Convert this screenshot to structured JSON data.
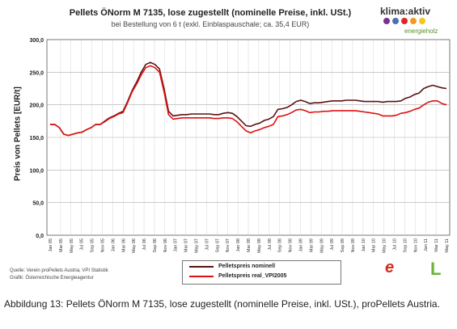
{
  "chart_data": {
    "type": "line",
    "title": "Pellets ÖNorm M 7135, lose zugestellt (nominelle Preise, inkl. USt.)",
    "subtitle": "bei Bestellung von 6 t (exkl. Einblaspauschale; ca. 35,4 EUR)",
    "ylabel": "Preis von Pellets [EUR/t]",
    "xlabel": "",
    "ylim": [
      0,
      300
    ],
    "yticks": [
      "0,0",
      "50,0",
      "100,0",
      "150,0",
      "200,0",
      "250,0",
      "300,0"
    ],
    "x_tick_labels": [
      "Jan 05",
      "Mar 05",
      "May 05",
      "Jul 05",
      "Sep 05",
      "Nov 05",
      "Jan 06",
      "Mar 06",
      "May 06",
      "Jul 06",
      "Sep 06",
      "Nov 06",
      "Jan 07",
      "Mar 07",
      "May 07",
      "Jul 07",
      "Sep 07",
      "Nov 07",
      "Jan 08",
      "Mar 08",
      "May 08",
      "Jul 08",
      "Sep 08",
      "Nov 08",
      "Jan 09",
      "Mar 09",
      "May 09",
      "Jul 09",
      "Sep 09",
      "Nov 09",
      "Jan 10",
      "Mar 10",
      "May 10",
      "Jul 10",
      "Sep 10",
      "Nov 10",
      "Jan 11",
      "Mar 11",
      "May 11"
    ],
    "grid": true,
    "legend_position": "bottom-center",
    "series": [
      {
        "name": "Pelletspreis nominell",
        "color": "#5a1212",
        "values": [
          170,
          170,
          165,
          155,
          153,
          155,
          157,
          158,
          162,
          165,
          170,
          170,
          175,
          180,
          183,
          187,
          190,
          205,
          222,
          235,
          250,
          262,
          265,
          262,
          255,
          225,
          190,
          183,
          184,
          185,
          185,
          186,
          186,
          186,
          186,
          186,
          185,
          185,
          187,
          188,
          187,
          182,
          175,
          168,
          167,
          170,
          172,
          176,
          178,
          182,
          193,
          194,
          196,
          200,
          205,
          207,
          205,
          202,
          203,
          203,
          204,
          205,
          206,
          206,
          206,
          207,
          207,
          207,
          206,
          205,
          205,
          205,
          205,
          204,
          205,
          205,
          205,
          206,
          210,
          212,
          216,
          218,
          225,
          228,
          230,
          228,
          226,
          225
        ]
      },
      {
        "name": "Pelletspreis real_VPI2005",
        "color": "#e01010",
        "values": [
          170,
          170,
          165,
          155,
          153,
          155,
          157,
          158,
          162,
          165,
          170,
          170,
          174,
          179,
          182,
          186,
          188,
          203,
          220,
          232,
          246,
          257,
          260,
          257,
          250,
          220,
          185,
          178,
          179,
          180,
          180,
          180,
          180,
          180,
          180,
          180,
          179,
          179,
          180,
          180,
          179,
          174,
          167,
          160,
          157,
          160,
          162,
          165,
          167,
          170,
          182,
          183,
          185,
          188,
          192,
          193,
          191,
          188,
          189,
          189,
          190,
          190,
          191,
          191,
          191,
          191,
          191,
          191,
          190,
          189,
          188,
          187,
          186,
          183,
          183,
          183,
          184,
          187,
          188,
          190,
          193,
          195,
          200,
          204,
          206,
          206,
          202,
          200
        ]
      }
    ]
  },
  "brand": {
    "name": "klima:aktiv",
    "sub": "energieholz",
    "dot_colors": [
      "#7b2f8e",
      "#4a6fb5",
      "#e2222a",
      "#f29a1f",
      "#f3c620"
    ]
  },
  "source": {
    "line1": "Quelle: Verein proPellets Austria; VPI Statistik",
    "line2": "Grafik: Österreichische Energieagentur"
  },
  "logos": {
    "left_mark": "e",
    "right_mark": "L"
  },
  "caption": "Abbildung 13: Pellets ÖNorm M 7135, lose zugestellt (nominelle Preise, inkl. USt.), proPellets Austria."
}
